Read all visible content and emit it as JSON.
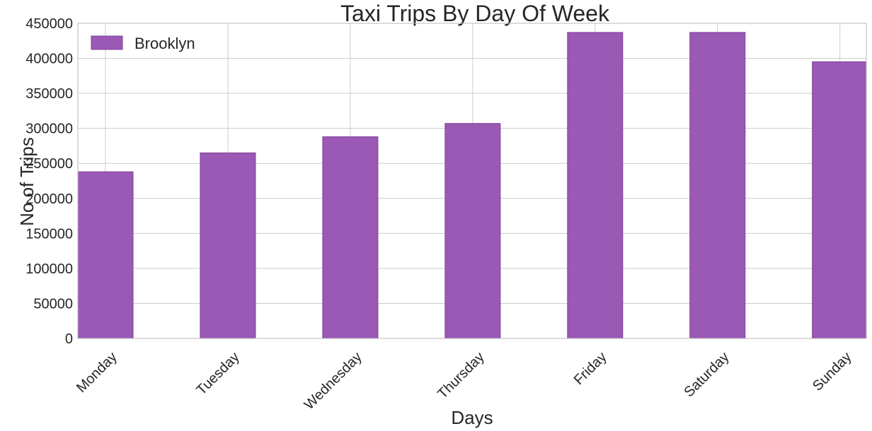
{
  "chart_data": {
    "type": "bar",
    "title": "Taxi Trips By Day Of Week",
    "xlabel": "Days",
    "ylabel": "No of Trips",
    "categories": [
      "Monday",
      "Tuesday",
      "Wednesday",
      "Thursday",
      "Friday",
      "Saturday",
      "Sunday"
    ],
    "series": [
      {
        "name": "Brooklyn",
        "values": [
          238000,
          265000,
          288000,
          307000,
          437000,
          437000,
          395000
        ]
      }
    ],
    "ylim": [
      0,
      450000
    ],
    "yticks": [
      0,
      50000,
      100000,
      150000,
      200000,
      250000,
      300000,
      350000,
      400000,
      450000
    ],
    "grid": true,
    "legend_position": "top-left",
    "colors": {
      "bar": "#9a59b5",
      "bar_edge": "#7d3f99",
      "grid": "#cccccc",
      "text": "#262626"
    }
  }
}
